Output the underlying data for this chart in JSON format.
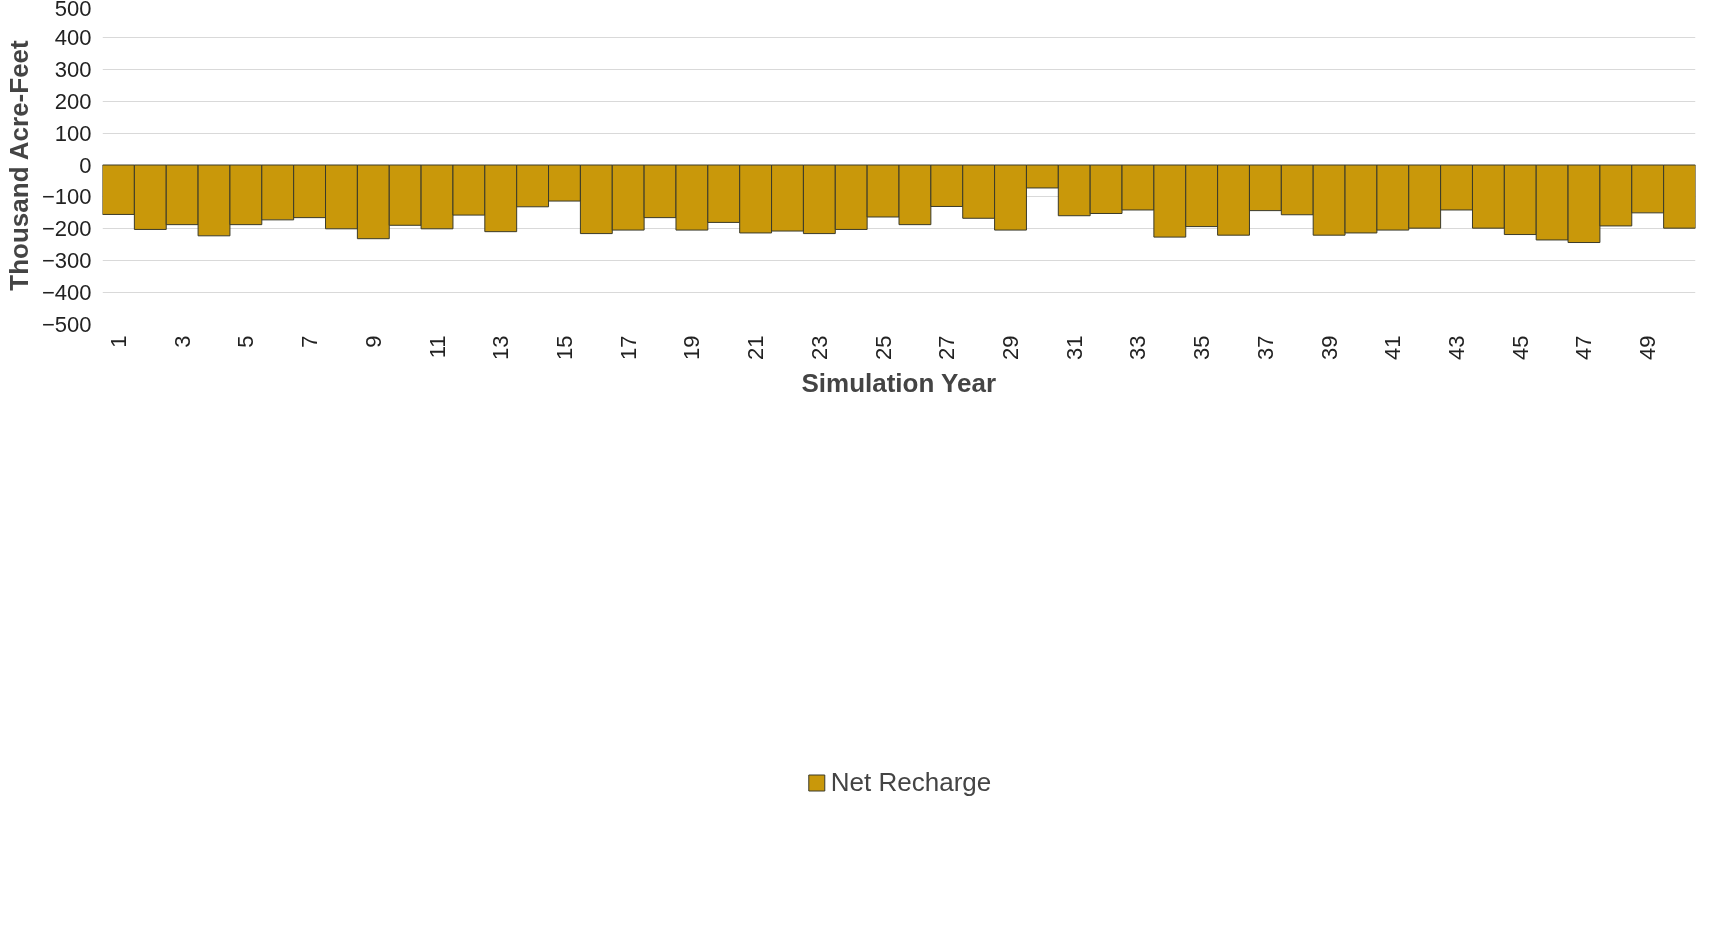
{
  "chart_data": {
    "type": "bar",
    "xlabel": "Simulation Year",
    "ylabel": "Thousand Acre-Feet",
    "categories": [
      "1",
      null,
      "3",
      null,
      "5",
      null,
      "7",
      null,
      "9",
      null,
      "11",
      null,
      "13",
      null,
      "15",
      null,
      "17",
      null,
      "19",
      null,
      "21",
      null,
      "23",
      null,
      "25",
      null,
      "27",
      null,
      "29",
      null,
      "31",
      null,
      "33",
      null,
      "35",
      null,
      "37",
      null,
      "39",
      null,
      "41",
      null,
      "43",
      null,
      "45",
      null,
      "47",
      null,
      "49",
      null
    ],
    "series": [
      {
        "name": "Net Recharge",
        "color": "#c9980a",
        "values": [
          -155,
          -202,
          -187,
          -222,
          -187,
          -172,
          -165,
          -200,
          -231,
          -189,
          -200,
          -157,
          -209,
          -131,
          -113,
          -215,
          -204,
          -165,
          -204,
          -180,
          -213,
          -207,
          -215,
          -202,
          -163,
          -187,
          -130,
          -167,
          -204,
          -72,
          -159,
          -152,
          -141,
          -226,
          -193,
          -220,
          -143,
          -156,
          -220,
          -213,
          -204,
          -198,
          -141,
          -198,
          -218,
          -235,
          -243,
          -191,
          -150,
          -198
        ]
      }
    ],
    "ylim": [
      -500,
      500
    ],
    "yticks": [
      -500,
      -400,
      -300,
      -200,
      -100,
      0,
      100,
      200,
      300,
      400,
      500
    ],
    "grid": "y",
    "legend": "bottom"
  }
}
